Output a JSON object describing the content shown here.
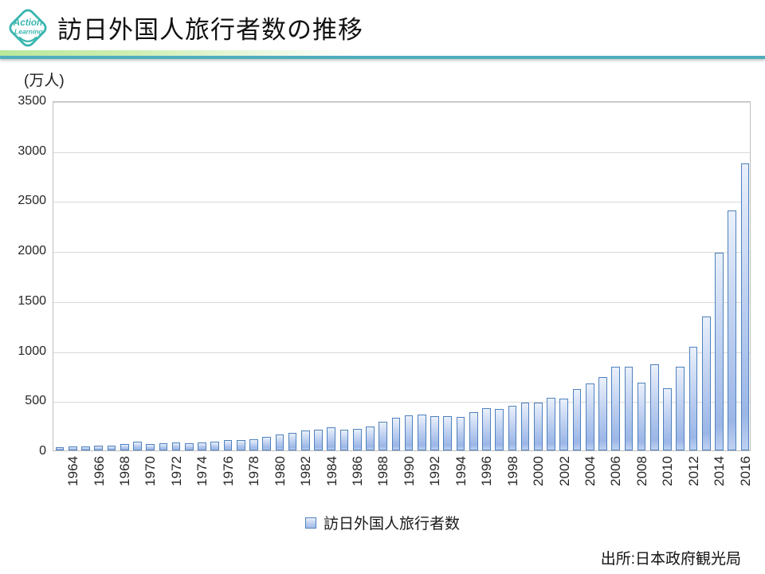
{
  "header": {
    "logo_line1": "Action",
    "logo_line2": "Learning",
    "title": "訪日外国人旅行者数の推移"
  },
  "footer": {
    "source": "出所:日本政府観光局"
  },
  "colors": {
    "accent_teal": "#4FAEBC",
    "accent_green": "#B9E89C",
    "logo_teal": "#3BB6B0",
    "bar_border": "#4F81BD",
    "bar_fill_light": "#EAF0FB",
    "bar_fill_dark": "#A3BCE9",
    "gridline": "#D9D9D9",
    "plot_border": "#BFBFBF"
  },
  "chart_data": {
    "type": "bar",
    "title": "訪日外国人旅行者数の推移",
    "unit_label": "(万人)",
    "series_name": "訪日外国人旅行者数",
    "xlabel": "",
    "ylabel": "(万人)",
    "ylim": [
      0,
      3500
    ],
    "ytick_step": 500,
    "xtick_label_every": 2,
    "grid": true,
    "legend_position": "bottom",
    "categories": [
      1964,
      1965,
      1966,
      1967,
      1968,
      1969,
      1970,
      1971,
      1972,
      1973,
      1974,
      1975,
      1976,
      1977,
      1978,
      1979,
      1980,
      1981,
      1982,
      1983,
      1984,
      1985,
      1986,
      1987,
      1988,
      1989,
      1990,
      1991,
      1992,
      1993,
      1994,
      1995,
      1996,
      1997,
      1998,
      1999,
      2000,
      2001,
      2002,
      2003,
      2004,
      2005,
      2006,
      2007,
      2008,
      2009,
      2010,
      2011,
      2012,
      2013,
      2014,
      2015,
      2016,
      2017
    ],
    "values": [
      35,
      37,
      43,
      48,
      52,
      61,
      85,
      66,
      72,
      78,
      76,
      81,
      92,
      103,
      104,
      111,
      132,
      158,
      179,
      197,
      211,
      233,
      206,
      216,
      236,
      284,
      324,
      353,
      358,
      341,
      347,
      335,
      384,
      422,
      411,
      444,
      476,
      477,
      524,
      521,
      614,
      673,
      733,
      835,
      835,
      679,
      861,
      622,
      836,
      1036,
      1341,
      1974,
      2404,
      2869
    ]
  }
}
